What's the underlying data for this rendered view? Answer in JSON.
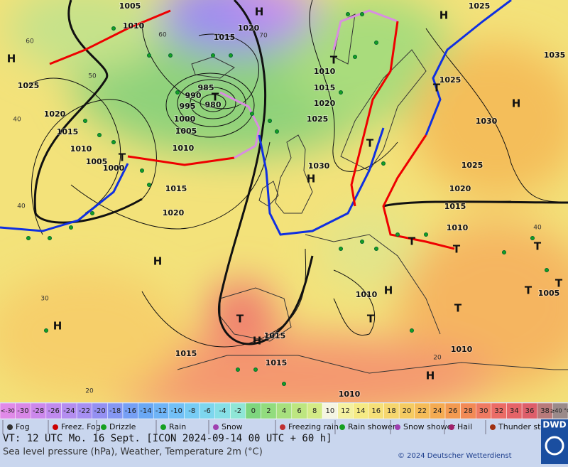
{
  "map": {
    "pressure_labels": [
      "1005",
      "1010",
      "1015",
      "1020",
      "1025",
      "1020",
      "1015",
      "1010",
      "1005",
      "1000",
      "985",
      "990",
      "995",
      "980",
      "1000",
      "1005",
      "1010",
      "1015",
      "1020",
      "1010",
      "1015",
      "1020",
      "1025",
      "1030",
      "1025",
      "1035",
      "1025",
      "1030",
      "1025",
      "1020",
      "1015",
      "1010",
      "1010",
      "1015",
      "1015",
      "1015",
      "1010",
      "1010",
      "1005"
    ],
    "temperature_labels": [
      "60",
      "70",
      "60",
      "50",
      "40",
      "40",
      "30",
      "20",
      "20",
      "40"
    ],
    "centers": [
      "H",
      "H",
      "H",
      "H",
      "H",
      "H",
      "H",
      "H",
      "H",
      "H",
      "T",
      "T",
      "T",
      "T",
      "T",
      "T",
      "T",
      "T",
      "T",
      "T",
      "T",
      "T",
      "T"
    ]
  },
  "colorbar": {
    "labels": [
      "<-30",
      "-30",
      "-28",
      "-26",
      "-24",
      "-22",
      "-20",
      "-18",
      "-16",
      "-14",
      "-12",
      "-10",
      "-8",
      "-6",
      "-4",
      "-2",
      "0",
      "2",
      "4",
      "6",
      "8",
      "10",
      "12",
      "14",
      "16",
      "18",
      "20",
      "22",
      "24",
      "26",
      "28",
      "30",
      "32",
      "34",
      "36",
      "38",
      "≥40 °C"
    ],
    "colors": [
      "#e08ae8",
      "#d887e6",
      "#cc88ec",
      "#c08aee",
      "#b48df0",
      "#a68ff2",
      "#9490f2",
      "#8597f3",
      "#769ff4",
      "#6aa8f4",
      "#6fb4f6",
      "#72c0f6",
      "#77ccf4",
      "#7dd6ee",
      "#86dfe6",
      "#8fe6d6",
      "#7ed67e",
      "#92dc7e",
      "#a7e07e",
      "#bde680",
      "#d3eb86",
      "#f5f5e2",
      "#f4f1a0",
      "#f5ea84",
      "#f6e078",
      "#f6d66e",
      "#f5cb62",
      "#f5bc58",
      "#f4ab52",
      "#f39a50",
      "#f28a56",
      "#ef7a62",
      "#eb6c66",
      "#e56468",
      "#dd5e6a",
      "#b87a7a",
      "#9a8a8a"
    ]
  },
  "legend": [
    "Fog",
    "Freez. Fog",
    "Drizzle",
    "Rain",
    "Snow",
    "Freezing rain",
    "Rain shower",
    "Snow shower",
    "Hail",
    "Thunder storm"
  ],
  "footer": {
    "valid_time": "VT: 12 UTC Mo.  16 Sept. [ICON 2024-09-14  00 UTC + 60 h]",
    "description": "Sea level pressure (hPa), Weather, Temperature 2m (°C)",
    "copyright": "© 2024 Deutscher Wetterdienst",
    "logo": "DWD"
  }
}
